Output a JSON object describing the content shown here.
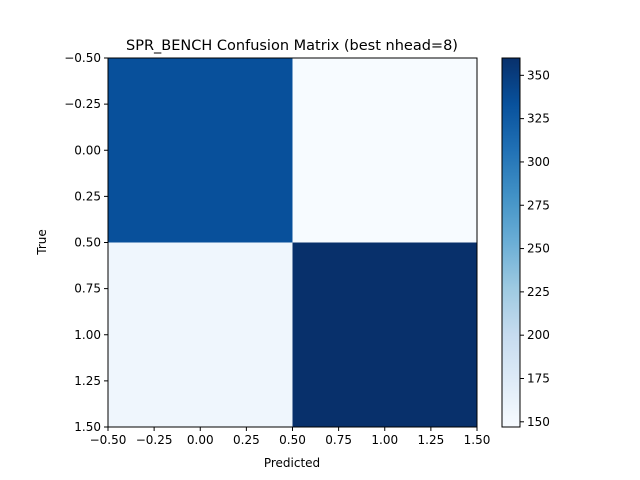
{
  "chart_data": {
    "type": "heatmap",
    "title": "SPR_BENCH Confusion Matrix (best nhead=8)",
    "xlabel": "Predicted",
    "ylabel": "True",
    "matrix": [
      [
        334,
        147
      ],
      [
        155,
        360
      ]
    ],
    "xlim": [
      -0.5,
      1.5
    ],
    "ylim": [
      1.5,
      -0.5
    ],
    "xticks": [
      "−0.50",
      "−0.25",
      "0.00",
      "0.25",
      "0.50",
      "0.75",
      "1.00",
      "1.25",
      "1.50"
    ],
    "yticks": [
      "−0.50",
      "−0.25",
      "0.00",
      "0.25",
      "0.50",
      "0.75",
      "1.00",
      "1.25",
      "1.50"
    ],
    "colorbar": {
      "min": 147,
      "max": 360,
      "ticks": [
        150,
        175,
        200,
        225,
        250,
        275,
        300,
        325,
        350
      ],
      "colormap": "Blues"
    },
    "grid": false
  }
}
